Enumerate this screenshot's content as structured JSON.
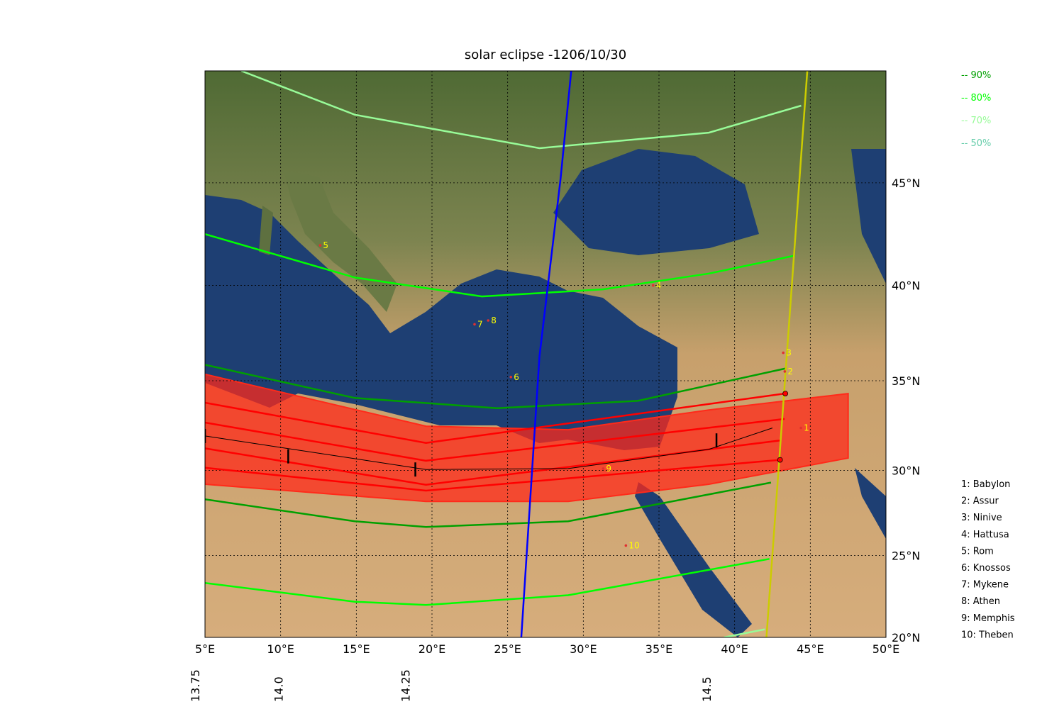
{
  "title": "solar eclipse -1206/10/30",
  "map": {
    "lonlim": [
      5,
      50
    ],
    "latlim": [
      20,
      50
    ],
    "lonticks": [
      {
        "value": 5,
        "label": "5°E"
      },
      {
        "value": 10,
        "label": "10°E"
      },
      {
        "value": 15,
        "label": "15°E"
      },
      {
        "value": 20,
        "label": "20°E"
      },
      {
        "value": 25,
        "label": "25°E"
      },
      {
        "value": 30,
        "label": "30°E"
      },
      {
        "value": 35,
        "label": "35°E"
      },
      {
        "value": 40,
        "label": "40°E"
      },
      {
        "value": 45,
        "label": "45°E"
      },
      {
        "value": 50,
        "label": "50°E"
      }
    ],
    "latticks": [
      {
        "value": 20,
        "label": "20°N"
      },
      {
        "value": 25,
        "label": "25°N"
      },
      {
        "value": 30,
        "label": "30°N"
      },
      {
        "value": 35,
        "label": "35°N"
      },
      {
        "value": 40,
        "label": "40°N"
      },
      {
        "value": 45,
        "label": "45°N"
      }
    ],
    "timeticks": [
      {
        "value": 13.75,
        "label": "13.75",
        "lon": 5,
        "lat": 31.95
      },
      {
        "value": 14.0,
        "label": "14.0",
        "lon": 10.5,
        "lat": 30.8
      },
      {
        "value": 14.25,
        "label": "14.25",
        "lon": 18.9,
        "lat": 30.05
      },
      {
        "value": 14.5,
        "label": "14.5",
        "lon": 38.8,
        "lat": 31.7
      }
    ]
  },
  "legend": [
    {
      "label": "-- 90%",
      "color": "#00a000"
    },
    {
      "label": "-- 80%",
      "color": "#00ff00"
    },
    {
      "label": "-- 70%",
      "color": "#98fb98"
    },
    {
      "label": "-- 50%",
      "color": "#66cdaa"
    }
  ],
  "band": {
    "color": "#ff2a1a",
    "north": {
      "lon": [
        5,
        19.6,
        29,
        38.3,
        47.5
      ],
      "lat": [
        35.35,
        32.5,
        32.3,
        33.4,
        34.3
      ]
    },
    "south": {
      "lon": [
        5,
        19.6,
        29,
        38.3,
        47.5
      ],
      "lat": [
        29.2,
        28.2,
        28.2,
        29.2,
        30.7
      ]
    }
  },
  "curves": [
    {
      "color": "#98fb98",
      "lon": [
        7.4,
        14.9,
        27.1,
        38.3,
        44.4
      ],
      "lat": [
        50,
        48.1,
        46.6,
        47.3,
        48.5
      ]
    },
    {
      "color": "#00ff00",
      "lon": [
        5,
        14.9,
        23.3,
        31.3,
        38.3,
        44
      ],
      "lat": [
        42.55,
        40.4,
        39.44,
        39.8,
        40.6,
        41.5
      ]
    },
    {
      "color": "#00a000",
      "lon": [
        5,
        14.9,
        24.3,
        33.6,
        43.4
      ],
      "lat": [
        35.86,
        34.06,
        33.5,
        33.9,
        35.67
      ]
    },
    {
      "color": "#00a000",
      "lon": [
        5,
        14.9,
        19.6,
        29,
        42.4
      ],
      "lat": [
        28.33,
        27.04,
        26.7,
        27.04,
        29.3
      ]
    },
    {
      "color": "#00ff00",
      "lon": [
        5,
        14.9,
        19.6,
        29,
        42.3
      ],
      "lat": [
        23.35,
        22.2,
        22.0,
        22.6,
        24.8
      ]
    },
    {
      "color": "#98fb98",
      "lon": [
        39.3,
        42
      ],
      "lat": [
        20,
        20.5
      ]
    },
    {
      "color": "#ff0000",
      "lon": [
        5,
        19.6,
        43.3
      ],
      "lat": [
        33.8,
        31.56,
        34.3
      ]
    },
    {
      "color": "#ff0000",
      "lon": [
        5,
        19.6,
        43
      ],
      "lat": [
        30.15,
        28.83,
        30.6
      ]
    },
    {
      "color": "#ff0000",
      "lon": [
        5,
        19.6,
        43.3
      ],
      "lat": [
        32.7,
        30.55,
        32.9
      ]
    },
    {
      "color": "#ff0000",
      "lon": [
        5,
        19.6,
        43
      ],
      "lat": [
        31.25,
        29.17,
        31.7
      ]
    },
    {
      "color": "#000000",
      "lon": [
        5,
        19.6,
        29,
        38.3,
        42.5
      ],
      "lat": [
        31.95,
        30.05,
        30.1,
        31.2,
        32.4
      ]
    },
    {
      "color": "#0000ff",
      "lon": [
        29.2,
        28.5,
        27.1,
        25.9
      ],
      "lat": [
        50,
        45.2,
        36.3,
        20
      ]
    },
    {
      "color": "#cccc00",
      "lon": [
        44.8,
        42.1
      ],
      "lat": [
        50,
        20
      ]
    }
  ],
  "contacts": {
    "color": "#ff0000",
    "lon": [
      43.35,
      43.0
    ],
    "lat": [
      34.3,
      30.6
    ]
  },
  "cities": [
    {
      "marker": "1",
      "label": "1: Babylon",
      "lon": 44.57,
      "lat": 32.4
    },
    {
      "marker": "2",
      "label": "2: Assur",
      "lon": 43.5,
      "lat": 35.5
    },
    {
      "marker": "3",
      "label": "3: Ninive",
      "lon": 43.4,
      "lat": 36.5
    },
    {
      "marker": "4",
      "label": "4: Hattusa",
      "lon": 34.8,
      "lat": 40.0
    },
    {
      "marker": "5",
      "label": "5: Rom",
      "lon": 12.8,
      "lat": 42.0
    },
    {
      "marker": "6",
      "label": "6: Knossos",
      "lon": 25.4,
      "lat": 35.2
    },
    {
      "marker": "7",
      "label": "7: Mykene",
      "lon": 23.0,
      "lat": 38.0
    },
    {
      "marker": "8",
      "label": "8: Athen",
      "lon": 23.9,
      "lat": 38.2
    },
    {
      "marker": "9",
      "label": "9: Memphis",
      "lon": 31.5,
      "lat": 30.1
    },
    {
      "marker": "10",
      "label": "10: Theben",
      "lon": 33.0,
      "lat": 25.6
    }
  ]
}
